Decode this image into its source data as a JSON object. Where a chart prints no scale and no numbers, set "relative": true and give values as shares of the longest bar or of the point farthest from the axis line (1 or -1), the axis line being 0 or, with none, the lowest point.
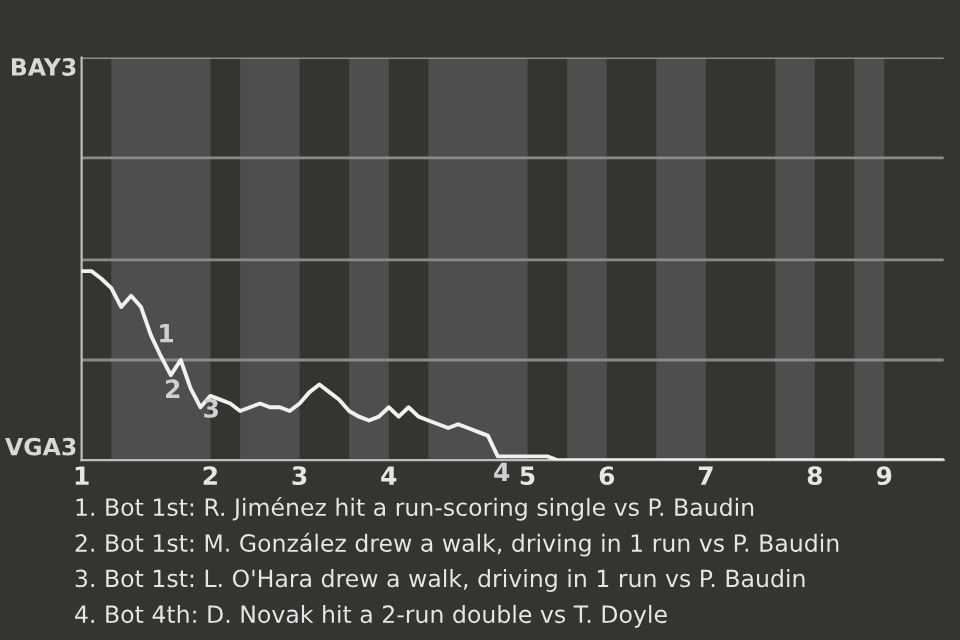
{
  "chart_data": {
    "type": "line",
    "relative": true,
    "categories": [
      "1",
      null,
      null,
      null,
      null,
      null,
      null,
      null,
      null,
      null,
      null,
      null,
      null,
      "2",
      null,
      null,
      null,
      null,
      null,
      null,
      null,
      null,
      "3",
      null,
      null,
      null,
      null,
      null,
      null,
      null,
      null,
      "4",
      null,
      null,
      null,
      null,
      null,
      null,
      null,
      null,
      null,
      null,
      null,
      null,
      null,
      "5",
      null,
      null,
      null,
      null,
      null,
      null,
      null,
      "6",
      null,
      null,
      null,
      null,
      null,
      null,
      null,
      null,
      null,
      "7",
      null,
      null,
      null,
      null,
      null,
      null,
      null,
      null,
      null,
      null,
      "8",
      null,
      null,
      null,
      null,
      null,
      null,
      "9",
      null,
      null,
      null,
      null,
      null,
      null
    ],
    "series": [
      {
        "color": "#f0f0f0",
        "values": [
          1,
          1,
          0.96,
          0.91,
          0.81,
          0.87,
          0.81,
          0.66,
          0.55,
          0.45,
          0.53,
          0.38,
          0.28,
          0.34,
          0.32,
          0.3,
          0.26,
          0.28,
          0.3,
          0.28,
          0.28,
          0.26,
          0.3,
          0.36,
          0.4,
          0.36,
          0.32,
          0.26,
          0.23,
          0.21,
          0.23,
          0.28,
          0.23,
          0.28,
          0.23,
          0.21,
          0.19,
          0.17,
          0.19,
          0.17,
          0.15,
          0.13,
          0.02,
          0.02,
          0.02,
          0.02,
          0.02,
          0.02,
          0,
          0,
          0,
          0,
          0,
          0,
          0,
          0,
          0,
          0,
          0,
          0,
          0,
          0,
          0,
          0,
          0,
          0,
          0,
          0,
          0,
          0,
          0,
          0,
          0,
          0,
          0,
          0,
          0,
          0,
          0,
          0,
          0,
          0,
          0,
          0,
          0,
          0,
          0,
          0
        ]
      }
    ],
    "ref_lines": [
      {
        "axis": "y",
        "value": 0.53,
        "color": "#8a8a8a"
      },
      {
        "axis": "y",
        "value": 1.06,
        "color": "#8a8a8a"
      },
      {
        "axis": "y",
        "value": 1.6,
        "color": "#8a8a8a"
      },
      {
        "axis": "y",
        "value": 2.13,
        "color": "#8a8a8a"
      }
    ],
    "annotations": [
      "BAY3",
      "VGA3",
      "1",
      "2",
      "3",
      "4",
      "1. Bot 1st: R. Jiménez hit a run-scoring single vs P. Baudin",
      "2. Bot 1st: M. González drew a walk, driving in 1 run vs P. Baudin",
      "3. Bot 1st: L. O'Hara drew a walk, driving in 1 run vs P. Baudin",
      "4. Bot 4th: D. Novak hit a 2-run double vs T. Doyle"
    ]
  }
}
